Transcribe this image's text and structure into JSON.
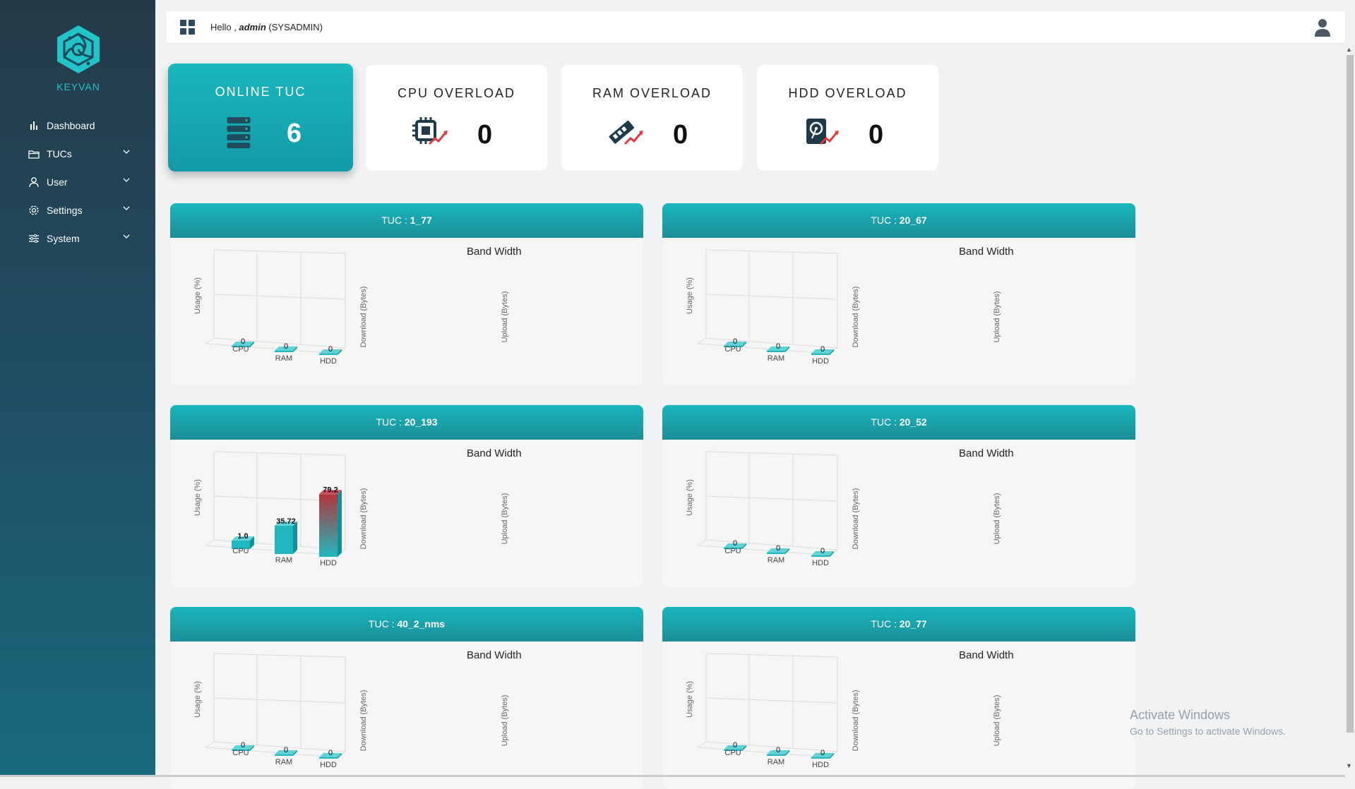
{
  "sidebar": {
    "logo_text": "KEYVAN",
    "items": [
      {
        "label": "Dashboard",
        "icon": "bar-chart-icon",
        "expandable": false
      },
      {
        "label": "TUCs",
        "icon": "folder-icon",
        "expandable": true
      },
      {
        "label": "User",
        "icon": "user-icon",
        "expandable": true
      },
      {
        "label": "Settings",
        "icon": "gear-icon",
        "expandable": true
      },
      {
        "label": "System",
        "icon": "sliders-icon",
        "expandable": true
      }
    ]
  },
  "header": {
    "greeting": "Hello ,",
    "username": "admin",
    "role": "(SYSADMIN)"
  },
  "stats": [
    {
      "title": "ONLINE TUC",
      "value": "6",
      "icon": "server-icon"
    },
    {
      "title": "CPU OVERLOAD",
      "value": "0",
      "icon": "cpu-overload-icon"
    },
    {
      "title": "RAM OVERLOAD",
      "value": "0",
      "icon": "ram-overload-icon"
    },
    {
      "title": "HDD OVERLOAD",
      "value": "0",
      "icon": "hdd-overload-icon"
    }
  ],
  "panel_labels": {
    "prefix": "TUC :",
    "bandwidth_title": "Band Width",
    "usage_axis": "Usage (%)",
    "download_axis": "Download (Bytes)",
    "upload_axis": "Upload (Bytes)"
  },
  "chart_data": [
    {
      "type": "bar",
      "title": "TUC : 1_77",
      "categories": [
        "CPU",
        "RAM",
        "HDD"
      ],
      "values": [
        0,
        0,
        0
      ],
      "value_labels": [
        "0",
        "0",
        "0"
      ],
      "ylabel": "Usage (%)"
    },
    {
      "type": "bar",
      "title": "TUC : 20_67",
      "categories": [
        "CPU",
        "RAM",
        "HDD"
      ],
      "values": [
        0,
        0,
        0
      ],
      "value_labels": [
        "0",
        "0",
        "0"
      ],
      "ylabel": "Usage (%)"
    },
    {
      "type": "bar",
      "title": "TUC : 20_193",
      "categories": [
        "CPU",
        "RAM",
        "HDD"
      ],
      "values": [
        1.0,
        35.72,
        79.2
      ],
      "value_labels": [
        "1.0",
        "35.72",
        "79.2"
      ],
      "ylabel": "Usage (%)"
    },
    {
      "type": "bar",
      "title": "TUC : 20_52",
      "categories": [
        "CPU",
        "RAM",
        "HDD"
      ],
      "values": [
        0,
        0,
        0
      ],
      "value_labels": [
        "0",
        "0",
        "0"
      ],
      "ylabel": "Usage (%)"
    },
    {
      "type": "bar",
      "title": "TUC : 40_2_nms",
      "categories": [
        "CPU",
        "RAM",
        "HDD"
      ],
      "values": [
        0,
        0,
        0
      ],
      "value_labels": [
        "0",
        "0",
        "0"
      ],
      "ylabel": "Usage (%)"
    },
    {
      "type": "bar",
      "title": "TUC : 20_77",
      "categories": [
        "CPU",
        "RAM",
        "HDD"
      ],
      "values": [
        0,
        0,
        0
      ],
      "value_labels": [
        "0",
        "0",
        "0"
      ],
      "ylabel": "Usage (%)"
    }
  ],
  "tucs": [
    {
      "name": "1_77"
    },
    {
      "name": "20_67"
    },
    {
      "name": "20_193"
    },
    {
      "name": "20_52"
    },
    {
      "name": "40_2_nms"
    },
    {
      "name": "20_77"
    }
  ],
  "colors": {
    "accent": "#19b7bd",
    "sidebar_top": "#253a48",
    "bar_low": "#1fb8be",
    "bar_high": "#b3343b"
  },
  "watermark": {
    "line1": "Activate Windows",
    "line2": "Go to Settings to activate Windows."
  }
}
